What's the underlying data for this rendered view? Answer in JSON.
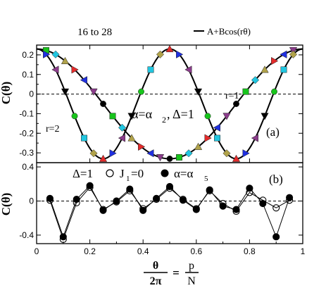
{
  "chart_data": [
    {
      "type": "scatter",
      "panel_label": "(a)",
      "ylabel": "C(θ)",
      "annotation_range": "16 to 28",
      "annotation_params": "α=α",
      "annotation_params_sub": "2",
      "annotation_params_tail": ", Δ=1",
      "curve_labels": [
        "r=1",
        "r=2"
      ],
      "legend": [
        "A+Bcos(rθ)"
      ],
      "xlim": [
        0,
        1
      ],
      "ylim": [
        -0.35,
        0.25
      ],
      "yticks": [
        -0.3,
        -0.2,
        -0.1,
        0,
        0.1,
        0.2
      ],
      "yticklabels": [
        "-0.3",
        "-0.2",
        "-0.1",
        "0",
        "0.1",
        "0.2"
      ],
      "fit_curves": [
        {
          "label": "r=1",
          "A": -0.05,
          "B": 0.28,
          "r": 2
        },
        {
          "label": "r=2",
          "A": -0.05,
          "B": 0.28,
          "r": 4
        }
      ],
      "marker_colors": [
        "#000000",
        "#e32b2b",
        "#18c41c",
        "#2030e0",
        "#21c6e0",
        "#8b3c8b",
        "#b0a24a"
      ]
    },
    {
      "type": "line",
      "panel_label": "(b)",
      "ylabel": "C(θ)",
      "legend_prefix": "Δ=1",
      "legend_open": "J",
      "legend_open_sub": "1",
      "legend_open_tail": "=0",
      "legend_filled": "α=α",
      "legend_filled_sub": "5",
      "xlim": [
        0,
        1
      ],
      "ylim": [
        -0.5,
        0.45
      ],
      "yticks": [
        -0.4,
        0,
        0.4
      ],
      "yticklabels": [
        "-0.4",
        "0",
        "0.4"
      ],
      "xticks": [
        0,
        0.2,
        0.4,
        0.6,
        0.8,
        1
      ],
      "xticklabels": [
        "0",
        "0.2",
        "0.4",
        "0.6",
        "0.8",
        "1"
      ],
      "x": [
        0.05,
        0.1,
        0.15,
        0.2,
        0.25,
        0.3,
        0.35,
        0.4,
        0.45,
        0.5,
        0.55,
        0.6,
        0.65,
        0.7,
        0.75,
        0.8,
        0.85,
        0.9,
        0.95
      ],
      "series": [
        {
          "name": "J1=0",
          "marker": "open",
          "values": [
            0.01,
            -0.45,
            -0.02,
            0.16,
            -0.1,
            -0.01,
            0.12,
            -0.09,
            0.02,
            0.15,
            0.02,
            -0.09,
            0.12,
            -0.03,
            -0.12,
            0.1,
            0.01,
            -0.08,
            0.01
          ]
        },
        {
          "name": "α=α5",
          "marker": "filled",
          "values": [
            0.03,
            -0.42,
            0.02,
            0.18,
            -0.11,
            0.0,
            0.14,
            -0.11,
            0.03,
            0.17,
            0.01,
            -0.1,
            0.13,
            -0.06,
            -0.1,
            0.15,
            -0.03,
            -0.42,
            0.04
          ]
        }
      ]
    }
  ],
  "xlabel_num": "θ",
  "xlabel_den": "2π",
  "xlabel_eq": "=",
  "xlabel_p": "p",
  "xlabel_N": "N"
}
